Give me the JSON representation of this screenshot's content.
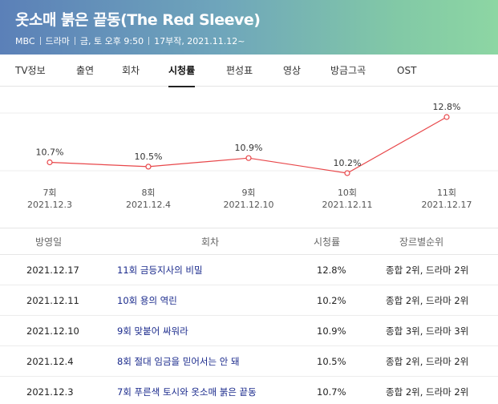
{
  "header": {
    "title": "옷소매 붉은 끝동(The Red Sleeve)",
    "meta": [
      "MBC",
      "드라마",
      "금, 토 오후 9:50",
      "17부작, 2021.11.12~"
    ]
  },
  "tabs": [
    {
      "label": "TV정보",
      "active": false
    },
    {
      "label": "출연",
      "active": false
    },
    {
      "label": "회차",
      "active": false
    },
    {
      "label": "시청률",
      "active": true
    },
    {
      "label": "편성표",
      "active": false
    },
    {
      "label": "영상",
      "active": false
    },
    {
      "label": "방금그곡",
      "active": false
    },
    {
      "label": "OST",
      "active": false
    }
  ],
  "chart_data": {
    "type": "line",
    "x": [
      "7회",
      "8회",
      "9회",
      "10회",
      "11회"
    ],
    "dates": [
      "2021.12.3",
      "2021.12.4",
      "2021.12.10",
      "2021.12.11",
      "2021.12.17"
    ],
    "values": [
      10.7,
      10.5,
      10.9,
      10.2,
      12.8
    ],
    "value_labels": [
      "10.7%",
      "10.5%",
      "10.9%",
      "10.2%",
      "12.8%"
    ],
    "unit": "%",
    "line_color": "#e8474a",
    "grid": true
  },
  "table": {
    "headers": {
      "date": "방영일",
      "episode": "회차",
      "rating": "시청률",
      "rank": "장르별순위"
    },
    "rows": [
      {
        "date": "2021.12.17",
        "episode": "11회 금등지사의 비밀",
        "rating": "12.8%",
        "rank": "종합 2위, 드라마 2위"
      },
      {
        "date": "2021.12.11",
        "episode": "10회 용의 역린",
        "rating": "10.2%",
        "rank": "종합 2위, 드라마 2위"
      },
      {
        "date": "2021.12.10",
        "episode": "9회 맞붙어 싸워라",
        "rating": "10.9%",
        "rank": "종합 3위, 드라마 3위"
      },
      {
        "date": "2021.12.4",
        "episode": "8회 절대 임금을 믿어서는 안 돼",
        "rating": "10.5%",
        "rank": "종합 2위, 드라마 2위"
      },
      {
        "date": "2021.12.3",
        "episode": "7회 푸른색 토시와 옷소매 붉은 끝동",
        "rating": "10.7%",
        "rank": "종합 2위, 드라마 2위"
      }
    ]
  }
}
